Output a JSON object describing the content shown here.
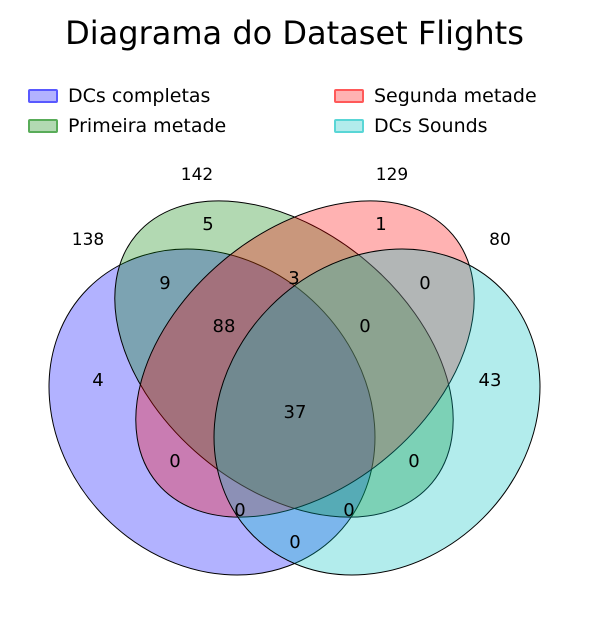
{
  "title": "Diagrama do Dataset Flights",
  "legend": [
    {
      "label": "DCs completas",
      "color": "#0000ff"
    },
    {
      "label": "Segunda metade",
      "color": "#ff0000"
    },
    {
      "label": "Primeira metade",
      "color": "#008000"
    },
    {
      "label": "DCs Sounds",
      "color": "#00bfbf"
    }
  ],
  "chart_data": {
    "type": "venn",
    "sets": [
      {
        "name": "DCs completas",
        "total": "138",
        "color": "#0000ff"
      },
      {
        "name": "Primeira metade",
        "total": "142",
        "color": "#008000"
      },
      {
        "name": "Segunda metade",
        "total": "129",
        "color": "#ff0000"
      },
      {
        "name": "DCs Sounds",
        "total": "80",
        "color": "#00bfbf"
      }
    ],
    "regions": [
      {
        "sets": [
          "Primeira metade"
        ],
        "value": "5"
      },
      {
        "sets": [
          "Segunda metade"
        ],
        "value": "1"
      },
      {
        "sets": [
          "DCs completas",
          "Primeira metade"
        ],
        "value": "9"
      },
      {
        "sets": [
          "Primeira metade",
          "Segunda metade"
        ],
        "value": "3"
      },
      {
        "sets": [
          "Segunda metade",
          "DCs Sounds"
        ],
        "value": "0"
      },
      {
        "sets": [
          "DCs completas",
          "Primeira metade",
          "Segunda metade"
        ],
        "value": "88"
      },
      {
        "sets": [
          "Primeira metade",
          "Segunda metade",
          "DCs Sounds"
        ],
        "value": "0"
      },
      {
        "sets": [
          "DCs completas"
        ],
        "value": "4"
      },
      {
        "sets": [
          "DCs completas",
          "Primeira metade",
          "Segunda metade",
          "DCs Sounds"
        ],
        "value": "37"
      },
      {
        "sets": [
          "DCs Sounds"
        ],
        "value": "43"
      },
      {
        "sets": [
          "DCs completas",
          "Segunda metade"
        ],
        "value": "0"
      },
      {
        "sets": [
          "Primeira metade",
          "DCs Sounds"
        ],
        "value": "0"
      },
      {
        "sets": [
          "DCs completas",
          "Segunda metade",
          "DCs Sounds"
        ],
        "value": "0"
      },
      {
        "sets": [
          "DCs completas",
          "Primeira metade",
          "DCs Sounds"
        ],
        "value": "0"
      },
      {
        "sets": [
          "DCs completas",
          "DCs Sounds"
        ],
        "value": "0"
      }
    ]
  }
}
